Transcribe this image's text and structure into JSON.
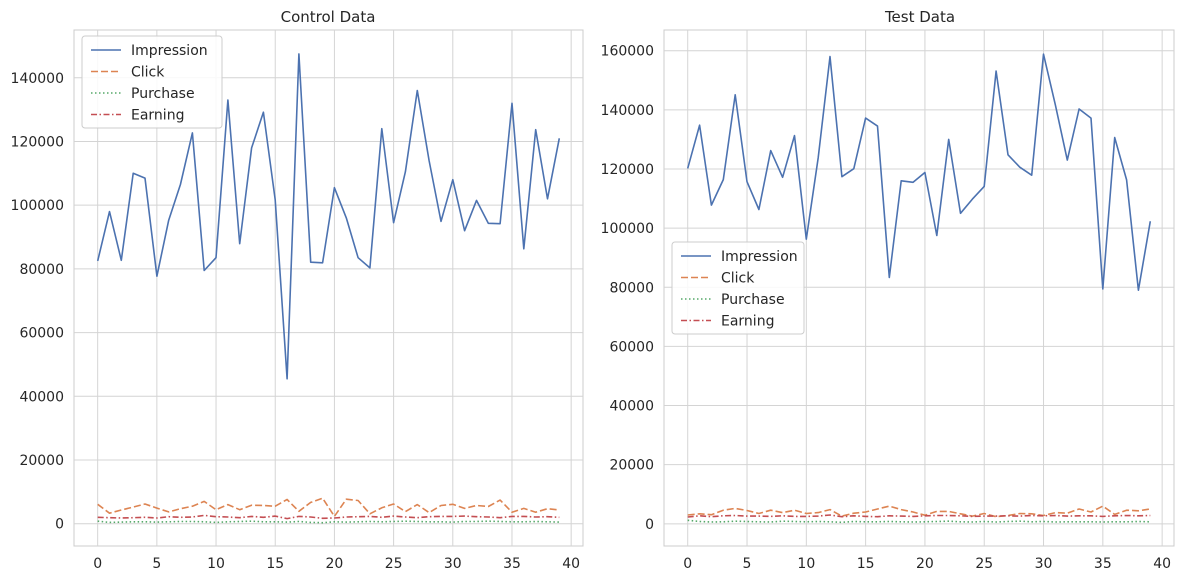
{
  "chart_data": [
    {
      "type": "line",
      "title": "Control Data",
      "xlabel": "",
      "ylabel": "",
      "xlim": [
        -2,
        41
      ],
      "ylim": [
        -7000,
        155000
      ],
      "x_ticks": [
        0,
        5,
        10,
        15,
        20,
        25,
        30,
        35,
        40
      ],
      "y_ticks": [
        0,
        20000,
        40000,
        60000,
        80000,
        100000,
        120000,
        140000
      ],
      "grid": true,
      "legend_position": "upper-left",
      "x": [
        0,
        1,
        2,
        3,
        4,
        5,
        6,
        7,
        8,
        9,
        10,
        11,
        12,
        13,
        14,
        15,
        16,
        17,
        18,
        19,
        20,
        21,
        22,
        23,
        24,
        25,
        26,
        27,
        28,
        29,
        30,
        31,
        32,
        33,
        34,
        35,
        36,
        37,
        38,
        39
      ],
      "series": [
        {
          "name": "Impression",
          "color": "#4c72b0",
          "dash": "solid",
          "values": [
            82500,
            98000,
            82700,
            110000,
            108500,
            77700,
            95300,
            106600,
            122700,
            79500,
            83500,
            133000,
            87900,
            118000,
            129200,
            101700,
            45500,
            147500,
            82100,
            81900,
            105500,
            96000,
            83500,
            80300,
            124000,
            94500,
            110500,
            136000,
            114000,
            94900,
            108000,
            92000,
            101500,
            94300,
            94200,
            132000,
            86300,
            123700,
            102000,
            121000
          ]
        },
        {
          "name": "Click",
          "color": "#dd8452",
          "dash": "dashed",
          "values": [
            6100,
            3300,
            4300,
            5200,
            6200,
            4900,
            3700,
            4700,
            5500,
            7000,
            4400,
            6000,
            4400,
            5800,
            5700,
            5500,
            7600,
            3900,
            6700,
            8000,
            2300,
            7700,
            7300,
            3100,
            5000,
            6200,
            3800,
            6000,
            3500,
            5700,
            6100,
            4800,
            5700,
            5400,
            7400,
            3600,
            4800,
            3600,
            4700,
            4300
          ]
        },
        {
          "name": "Purchase",
          "color": "#55a868",
          "dash": "dotted",
          "values": [
            800,
            400,
            500,
            600,
            600,
            500,
            600,
            700,
            700,
            600,
            400,
            600,
            700,
            800,
            600,
            600,
            500,
            700,
            400,
            300,
            600,
            500,
            600,
            700,
            600,
            700,
            800,
            700,
            600,
            600,
            500,
            700,
            700,
            800,
            700,
            600,
            600,
            700,
            600,
            500
          ]
        },
        {
          "name": "Earning",
          "color": "#c44e52",
          "dash": "dashdot",
          "values": [
            2000,
            1900,
            1800,
            1900,
            2000,
            1800,
            2200,
            2000,
            2100,
            2600,
            2200,
            2100,
            1900,
            2300,
            2000,
            2400,
            1600,
            2300,
            2100,
            1700,
            1800,
            2100,
            2200,
            2300,
            2000,
            2400,
            2100,
            1900,
            2200,
            2300,
            2300,
            2400,
            2200,
            2100,
            1900,
            2300,
            2300,
            2100,
            2200,
            2000
          ]
        }
      ]
    },
    {
      "type": "line",
      "title": "Test Data",
      "xlabel": "",
      "ylabel": "",
      "xlim": [
        -2,
        41
      ],
      "ylim": [
        -7500,
        167000
      ],
      "x_ticks": [
        0,
        5,
        10,
        15,
        20,
        25,
        30,
        35,
        40
      ],
      "y_ticks": [
        0,
        20000,
        40000,
        60000,
        80000,
        100000,
        120000,
        140000,
        160000
      ],
      "grid": true,
      "legend_position": "center-left",
      "x": [
        0,
        1,
        2,
        3,
        4,
        5,
        6,
        7,
        8,
        9,
        10,
        11,
        12,
        13,
        14,
        15,
        16,
        17,
        18,
        19,
        20,
        21,
        22,
        23,
        24,
        25,
        26,
        27,
        28,
        29,
        30,
        31,
        32,
        33,
        34,
        35,
        36,
        37,
        38,
        39
      ],
      "series": [
        {
          "name": "Impression",
          "color": "#4c72b0",
          "dash": "solid",
          "values": [
            120200,
            134800,
            107800,
            116400,
            145100,
            115700,
            106300,
            126200,
            117200,
            131300,
            96300,
            123800,
            158000,
            117400,
            120100,
            137200,
            134500,
            83300,
            116000,
            115500,
            118800,
            97500,
            130000,
            105000,
            109800,
            114100,
            153100,
            124800,
            120600,
            117900,
            158800,
            141600,
            123000,
            140300,
            137200,
            79400,
            130600,
            116300,
            79000,
            102300
          ]
        },
        {
          "name": "Click",
          "color": "#dd8452",
          "dash": "dashed",
          "values": [
            3000,
            3400,
            3100,
            4600,
            5200,
            4500,
            3500,
            4600,
            3800,
            4600,
            3500,
            3800,
            4800,
            2600,
            3600,
            4000,
            5000,
            6000,
            4800,
            4000,
            2900,
            4200,
            4200,
            3400,
            2600,
            3500,
            2400,
            2800,
            3500,
            3400,
            2800,
            3800,
            3600,
            5000,
            4000,
            6000,
            3200,
            4600,
            4400,
            5000
          ]
        },
        {
          "name": "Purchase",
          "color": "#55a868",
          "dash": "dotted",
          "values": [
            1200,
            800,
            600,
            700,
            900,
            800,
            700,
            600,
            900,
            800,
            700,
            800,
            700,
            500,
            800,
            700,
            700,
            800,
            700,
            600,
            700,
            800,
            900,
            700,
            600,
            800,
            600,
            800,
            900,
            700,
            800,
            600,
            700,
            700,
            700,
            600,
            700,
            700,
            800,
            700
          ]
        },
        {
          "name": "Earning",
          "color": "#c44e52",
          "dash": "dashdot",
          "values": [
            2300,
            2700,
            2400,
            2700,
            2800,
            2600,
            2600,
            2500,
            2700,
            2500,
            2500,
            2600,
            3000,
            2400,
            2700,
            2500,
            2400,
            2700,
            2600,
            2500,
            2700,
            2800,
            2800,
            2700,
            2500,
            2600,
            2600,
            2700,
            2600,
            2800,
            2700,
            2800,
            2600,
            2700,
            2700,
            2500,
            2700,
            2800,
            2700,
            2800
          ]
        }
      ]
    }
  ]
}
